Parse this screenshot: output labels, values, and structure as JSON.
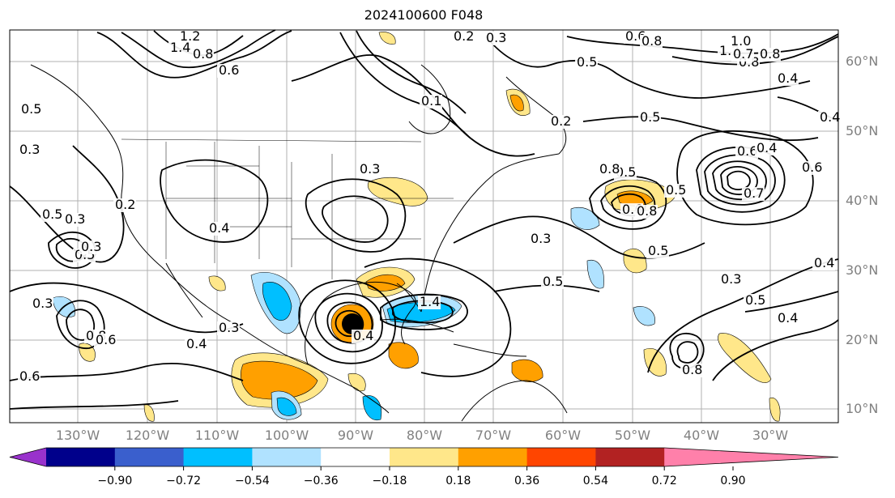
{
  "title": "2024100600 F048",
  "lat_labels": [
    "60°N",
    "50°N",
    "40°N",
    "30°N",
    "20°N",
    "10°N"
  ],
  "lon_labels": [
    "130°W",
    "120°W",
    "110°W",
    "100°W",
    "90°W",
    "80°W",
    "70°W",
    "60°W",
    "50°W",
    "40°W",
    "30°W"
  ],
  "colorbar": {
    "ticks": [
      "−0.90",
      "−0.72",
      "−0.54",
      "−0.36",
      "−0.18",
      "0.18",
      "0.36",
      "0.54",
      "0.72",
      "0.90"
    ],
    "colors": [
      "#9932cc",
      "#00008b",
      "#3a5fcd",
      "#00bfff",
      "#b0e2ff",
      "#ffffff",
      "#ffe78a",
      "#ffa000",
      "#ff4500",
      "#b22222",
      "#ff80aa"
    ]
  },
  "contour_labels": [
    "1.2",
    "0.8",
    "0.6",
    "1.4",
    "1.2",
    "1.0",
    "0.8",
    "0.7",
    "0.6",
    "0.8",
    "0.8",
    "0.5",
    "0.5",
    "0.4",
    "0.4",
    "0.5",
    "0.3",
    "0.2",
    "0.1",
    "0.2",
    "0.3",
    "0.3",
    "0.5",
    "0.6",
    "0.8",
    "0.8",
    "0.5",
    "0.7",
    "0.6",
    "0.4",
    "0.6",
    "0.8",
    "1.4",
    "0.4",
    "0.4",
    "0.5",
    "0.3",
    "0.5",
    "0.3",
    "0.5",
    "0.4",
    "0.4",
    "0.5",
    "0.3",
    "0.5",
    "0.3",
    "0.8",
    "0.6",
    "0.3",
    "0.4",
    "0.6",
    "0.3",
    "0.2"
  ]
}
